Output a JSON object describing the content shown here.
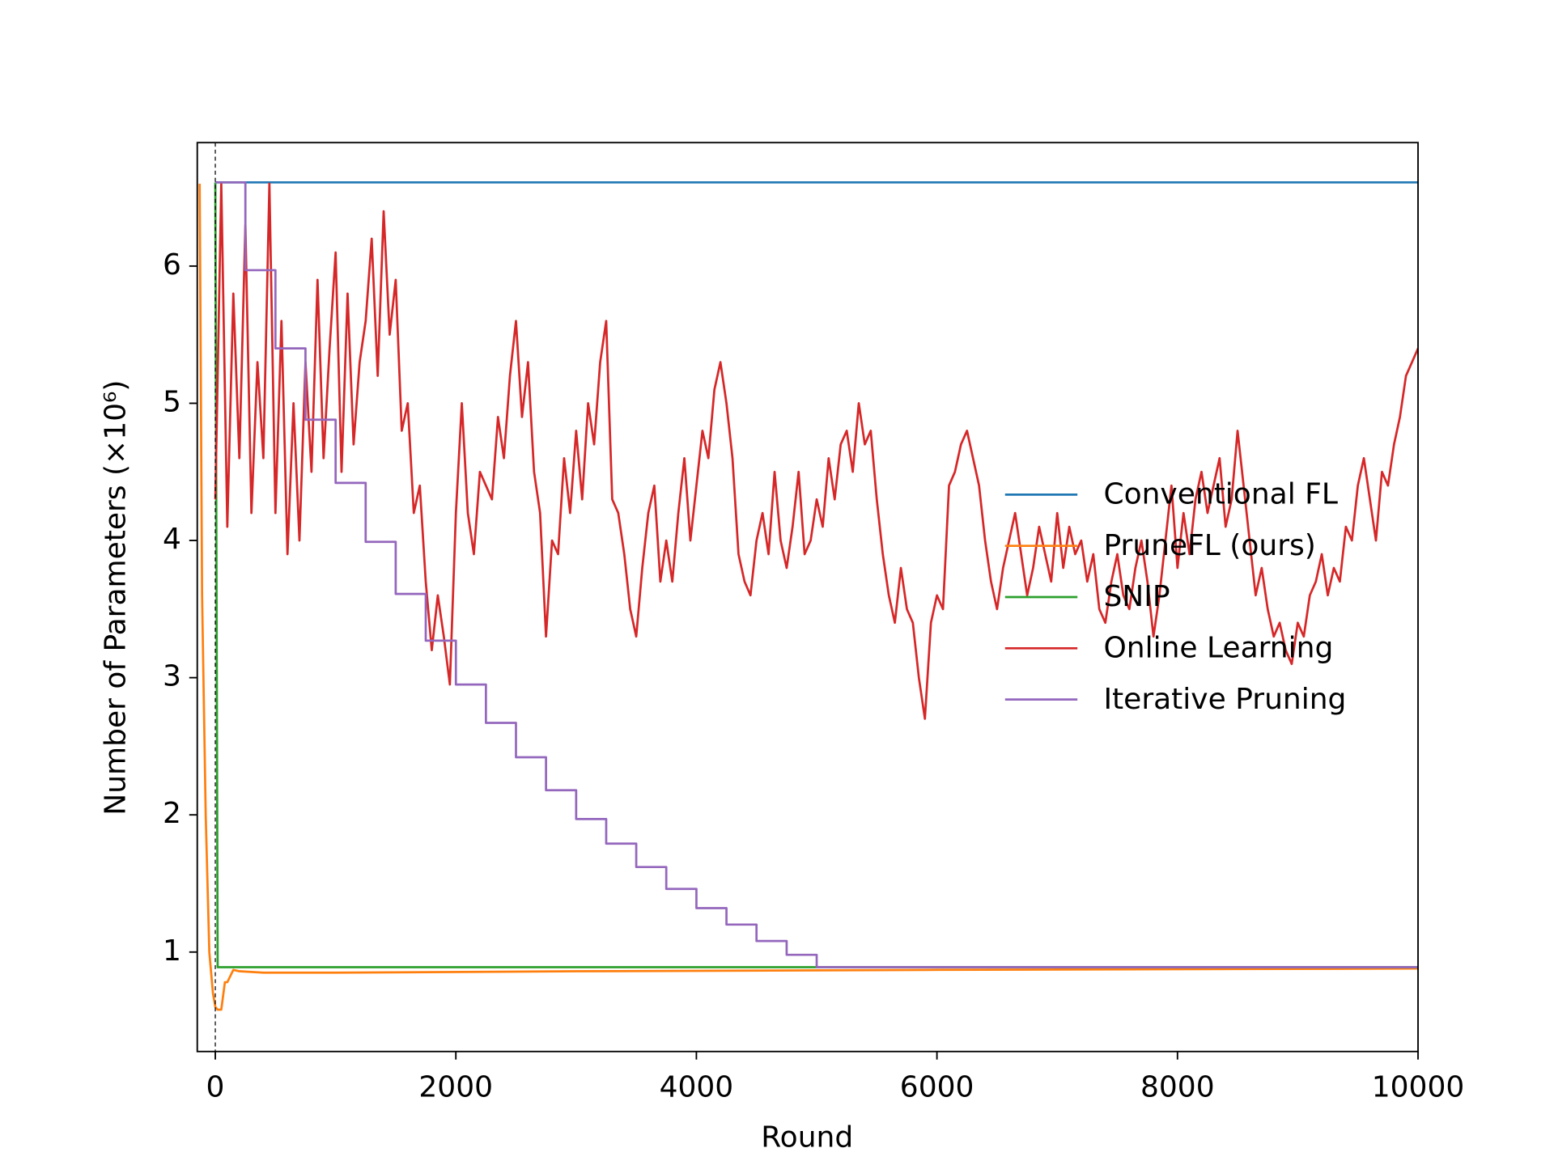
{
  "chart_data": {
    "type": "line",
    "xlabel": "Round",
    "ylabel": "Number of Parameters (×10⁶)",
    "xlim": [
      -150,
      10000
    ],
    "ylim": [
      0.275,
      6.9
    ],
    "xticks": [
      0,
      2000,
      4000,
      6000,
      8000,
      10000
    ],
    "yticks": [
      1,
      2,
      3,
      4,
      5,
      6
    ],
    "vlines": [
      0
    ],
    "legend": "center right",
    "grid": false,
    "series": [
      {
        "name": "Conventional FL",
        "color": "#1f77b4",
        "x": [
          0,
          10000
        ],
        "values": [
          6.61,
          6.61
        ]
      },
      {
        "name": "PruneFL (ours)",
        "color": "#ff7f0e",
        "x": [
          -130,
          -110,
          -80,
          -50,
          -20,
          0,
          20,
          50,
          80,
          100,
          150,
          200,
          400,
          1000,
          3000,
          6000,
          10000
        ],
        "values": [
          6.6,
          3.6,
          2.0,
          1.0,
          0.7,
          0.6,
          0.58,
          0.58,
          0.78,
          0.78,
          0.87,
          0.86,
          0.85,
          0.85,
          0.86,
          0.87,
          0.88
        ]
      },
      {
        "name": "SNIP",
        "color": "#2ca02c",
        "x": [
          0,
          20,
          10000
        ],
        "values": [
          6.61,
          0.89,
          0.89
        ]
      },
      {
        "name": "Online Learning",
        "color": "#d62728",
        "x": [
          0,
          50,
          100,
          150,
          200,
          250,
          300,
          350,
          400,
          450,
          500,
          550,
          600,
          650,
          700,
          750,
          800,
          850,
          900,
          950,
          1000,
          1050,
          1100,
          1150,
          1200,
          1250,
          1300,
          1350,
          1400,
          1450,
          1500,
          1550,
          1600,
          1650,
          1700,
          1750,
          1800,
          1850,
          1900,
          1950,
          2000,
          2050,
          2100,
          2150,
          2200,
          2300,
          2350,
          2400,
          2450,
          2500,
          2550,
          2600,
          2650,
          2700,
          2750,
          2800,
          2850,
          2900,
          2950,
          3000,
          3050,
          3100,
          3150,
          3200,
          3250,
          3300,
          3350,
          3400,
          3450,
          3500,
          3550,
          3600,
          3650,
          3700,
          3750,
          3800,
          3850,
          3900,
          3950,
          4000,
          4050,
          4100,
          4150,
          4200,
          4250,
          4300,
          4350,
          4400,
          4450,
          4500,
          4550,
          4600,
          4650,
          4700,
          4750,
          4800,
          4850,
          4900,
          4950,
          5000,
          5050,
          5100,
          5150,
          5200,
          5250,
          5300,
          5350,
          5400,
          5450,
          5500,
          5550,
          5600,
          5650,
          5700,
          5750,
          5800,
          5850,
          5900,
          5950,
          6000,
          6050,
          6100,
          6150,
          6200,
          6250,
          6300,
          6350,
          6400,
          6450,
          6500,
          6550,
          6600,
          6650,
          6700,
          6750,
          6800,
          6850,
          6900,
          6950,
          7000,
          7050,
          7100,
          7150,
          7200,
          7250,
          7300,
          7350,
          7400,
          7450,
          7500,
          7550,
          7600,
          7650,
          7700,
          7750,
          7800,
          7850,
          7900,
          7950,
          8000,
          8050,
          8100,
          8150,
          8200,
          8250,
          8300,
          8350,
          8400,
          8450,
          8500,
          8550,
          8600,
          8650,
          8700,
          8750,
          8800,
          8850,
          8900,
          8950,
          9000,
          9050,
          9100,
          9150,
          9200,
          9250,
          9300,
          9350,
          9400,
          9450,
          9500,
          9550,
          9600,
          9650,
          9700,
          9750,
          9800,
          9850,
          9900,
          9950,
          10000
        ],
        "values": [
          4.3,
          6.6,
          4.1,
          5.8,
          4.6,
          6.3,
          4.2,
          5.3,
          4.6,
          6.6,
          4.2,
          5.6,
          3.9,
          5.0,
          4.0,
          5.3,
          4.5,
          5.9,
          4.6,
          5.4,
          6.1,
          4.5,
          5.8,
          4.7,
          5.3,
          5.6,
          6.2,
          5.2,
          6.4,
          5.5,
          5.9,
          4.8,
          5.0,
          4.2,
          4.4,
          3.7,
          3.2,
          3.6,
          3.3,
          2.95,
          4.2,
          5.0,
          4.2,
          3.9,
          4.5,
          4.3,
          4.9,
          4.6,
          5.2,
          5.6,
          4.9,
          5.3,
          4.5,
          4.2,
          3.3,
          4.0,
          3.9,
          4.6,
          4.2,
          4.8,
          4.3,
          5.0,
          4.7,
          5.3,
          5.6,
          4.3,
          4.2,
          3.9,
          3.5,
          3.3,
          3.8,
          4.2,
          4.4,
          3.7,
          4.0,
          3.7,
          4.2,
          4.6,
          4.0,
          4.4,
          4.8,
          4.6,
          5.1,
          5.3,
          5.0,
          4.6,
          3.9,
          3.7,
          3.6,
          4.0,
          4.2,
          3.9,
          4.5,
          4.0,
          3.8,
          4.1,
          4.5,
          3.9,
          4.0,
          4.3,
          4.1,
          4.6,
          4.3,
          4.7,
          4.8,
          4.5,
          5.0,
          4.7,
          4.8,
          4.3,
          3.9,
          3.6,
          3.4,
          3.8,
          3.5,
          3.4,
          3.0,
          2.7,
          3.4,
          3.6,
          3.5,
          4.4,
          4.5,
          4.7,
          4.8,
          4.6,
          4.4,
          4.0,
          3.7,
          3.5,
          3.8,
          4.0,
          4.2,
          3.9,
          3.6,
          3.8,
          4.1,
          3.9,
          3.7,
          4.2,
          3.8,
          4.1,
          3.9,
          4.0,
          3.7,
          3.9,
          3.5,
          3.4,
          3.7,
          3.9,
          3.6,
          3.5,
          3.8,
          4.0,
          3.7,
          3.3,
          3.6,
          4.0,
          4.4,
          3.8,
          4.2,
          3.9,
          4.3,
          4.5,
          4.2,
          4.4,
          4.6,
          4.1,
          4.3,
          4.8,
          4.4,
          4.0,
          3.6,
          3.8,
          3.5,
          3.3,
          3.4,
          3.2,
          3.1,
          3.4,
          3.3,
          3.6,
          3.7,
          3.9,
          3.6,
          3.8,
          3.7,
          4.1,
          4.0,
          4.4,
          4.6,
          4.3,
          4.0,
          4.5,
          4.4,
          4.7,
          4.9,
          5.2,
          5.3,
          5.4
        ]
      },
      {
        "name": "Iterative Pruning",
        "color": "#9467bd",
        "drawstyle": "steps-post",
        "x": [
          0,
          250,
          500,
          750,
          1000,
          1250,
          1500,
          1750,
          2000,
          2250,
          2500,
          2750,
          3000,
          3250,
          3500,
          3750,
          4000,
          4250,
          4500,
          4750,
          5000,
          10000
        ],
        "values": [
          6.61,
          5.97,
          5.4,
          4.88,
          4.42,
          3.99,
          3.61,
          3.27,
          2.95,
          2.67,
          2.42,
          2.18,
          1.97,
          1.79,
          1.62,
          1.46,
          1.32,
          1.2,
          1.08,
          0.98,
          0.89,
          0.89
        ]
      }
    ]
  }
}
